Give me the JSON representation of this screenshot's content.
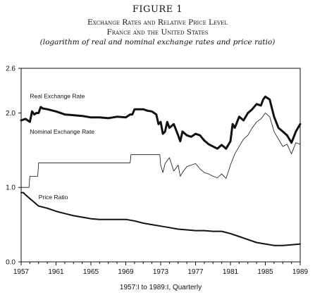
{
  "figure": {
    "number": "FIGURE 1",
    "title": "Exchange Rates and Relative Price Level",
    "subtitle": "France and the United States",
    "note": "(logarithm of real and nominal exchange rates and price ratio)"
  },
  "chart_data": {
    "type": "line",
    "xlabel": "1957:I to 1989:I, Quarterly",
    "ylabel": "",
    "xlim": [
      1957,
      1989
    ],
    "ylim": [
      0.0,
      2.6
    ],
    "x_ticks": [
      "1957",
      "1961",
      "1965",
      "1969",
      "1973",
      "1977",
      "1981",
      "1985",
      "1989"
    ],
    "y_ticks": [
      "0.0",
      "1.0",
      "2.0",
      "2.6"
    ],
    "grid": false,
    "series": [
      {
        "name": "Real Exchange Rate",
        "style": "thick",
        "x": [
          1957.0,
          1957.5,
          1958.0,
          1958.25,
          1958.5,
          1958.75,
          1959.0,
          1959.25,
          1959.5,
          1960.0,
          1961.0,
          1962.0,
          1963.0,
          1964.0,
          1965.0,
          1966.0,
          1967.0,
          1968.0,
          1969.0,
          1969.5,
          1969.75,
          1970.0,
          1971.0,
          1971.5,
          1972.0,
          1972.5,
          1972.75,
          1973.0,
          1973.25,
          1973.5,
          1973.75,
          1974.0,
          1974.5,
          1975.0,
          1975.25,
          1975.5,
          1976.0,
          1976.5,
          1977.0,
          1977.5,
          1978.0,
          1978.5,
          1979.0,
          1979.5,
          1980.0,
          1980.5,
          1981.0,
          1981.25,
          1981.5,
          1982.0,
          1982.5,
          1983.0,
          1983.5,
          1984.0,
          1984.5,
          1984.75,
          1985.0,
          1985.5,
          1986.0,
          1986.5,
          1987.0,
          1987.5,
          1988.0,
          1988.5,
          1989.0
        ],
        "values": [
          1.9,
          1.92,
          1.88,
          2.02,
          1.98,
          2.0,
          2.0,
          2.08,
          2.06,
          2.05,
          2.02,
          1.98,
          1.97,
          1.96,
          1.94,
          1.94,
          1.93,
          1.95,
          1.94,
          1.98,
          1.98,
          2.05,
          2.05,
          2.03,
          2.02,
          1.98,
          1.85,
          1.88,
          1.72,
          1.75,
          1.88,
          1.8,
          1.85,
          1.7,
          1.62,
          1.75,
          1.7,
          1.68,
          1.72,
          1.7,
          1.63,
          1.58,
          1.55,
          1.52,
          1.57,
          1.52,
          1.62,
          1.85,
          1.8,
          1.95,
          1.9,
          2.0,
          2.05,
          2.12,
          2.1,
          2.18,
          2.22,
          2.18,
          1.95,
          1.8,
          1.75,
          1.7,
          1.6,
          1.75,
          1.85
        ]
      },
      {
        "name": "Nominal Exchange Rate",
        "style": "thin",
        "x": [
          1957.0,
          1957.9,
          1958.0,
          1958.9,
          1959.0,
          1969.5,
          1969.6,
          1972.9,
          1973.0,
          1973.25,
          1973.5,
          1974.0,
          1974.5,
          1975.0,
          1975.25,
          1975.5,
          1976.0,
          1976.5,
          1977.0,
          1977.5,
          1978.0,
          1978.5,
          1979.0,
          1979.5,
          1980.0,
          1980.5,
          1981.0,
          1981.5,
          1982.0,
          1982.5,
          1983.0,
          1983.5,
          1984.0,
          1984.5,
          1985.0,
          1985.5,
          1986.0,
          1986.5,
          1987.0,
          1987.5,
          1988.0,
          1988.5,
          1989.0
        ],
        "values": [
          1.0,
          1.0,
          1.15,
          1.15,
          1.33,
          1.33,
          1.44,
          1.44,
          1.3,
          1.2,
          1.32,
          1.4,
          1.22,
          1.3,
          1.15,
          1.2,
          1.28,
          1.3,
          1.32,
          1.25,
          1.2,
          1.18,
          1.15,
          1.13,
          1.18,
          1.12,
          1.3,
          1.45,
          1.55,
          1.65,
          1.7,
          1.8,
          1.88,
          1.92,
          2.0,
          1.95,
          1.75,
          1.65,
          1.55,
          1.58,
          1.45,
          1.6,
          1.58
        ]
      },
      {
        "name": "Price Ratio",
        "style": "medium",
        "x": [
          1957.0,
          1957.25,
          1957.5,
          1958.0,
          1958.5,
          1959.0,
          1960.0,
          1961.0,
          1962.0,
          1963.0,
          1964.0,
          1965.0,
          1966.0,
          1967.0,
          1968.0,
          1969.0,
          1970.0,
          1971.0,
          1972.0,
          1973.0,
          1974.0,
          1975.0,
          1976.0,
          1977.0,
          1978.0,
          1979.0,
          1980.0,
          1981.0,
          1982.0,
          1983.0,
          1984.0,
          1985.0,
          1986.0,
          1987.0,
          1988.0,
          1989.0
        ],
        "values": [
          0.93,
          0.93,
          0.9,
          0.85,
          0.8,
          0.75,
          0.72,
          0.68,
          0.65,
          0.62,
          0.6,
          0.58,
          0.57,
          0.57,
          0.57,
          0.57,
          0.55,
          0.52,
          0.5,
          0.48,
          0.46,
          0.44,
          0.43,
          0.42,
          0.42,
          0.41,
          0.41,
          0.38,
          0.34,
          0.3,
          0.26,
          0.24,
          0.22,
          0.22,
          0.23,
          0.24
        ]
      }
    ]
  }
}
